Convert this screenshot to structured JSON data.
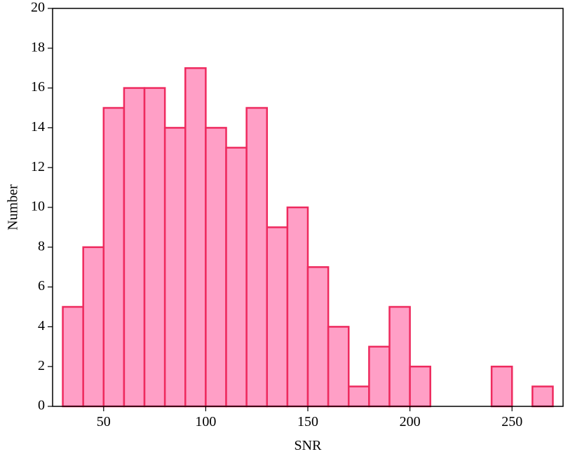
{
  "chart_data": {
    "type": "histogram",
    "xlabel": "SNR",
    "ylabel": "Number",
    "bins": [
      30,
      40,
      50,
      60,
      70,
      80,
      90,
      100,
      110,
      120,
      130,
      140,
      150,
      160,
      170,
      180,
      190,
      200,
      210,
      220,
      230,
      240,
      250,
      260,
      270
    ],
    "values": [
      5,
      8,
      15,
      16,
      16,
      14,
      17,
      14,
      13,
      15,
      9,
      10,
      7,
      4,
      1,
      3,
      5,
      2,
      0,
      0,
      0,
      2,
      0,
      1
    ],
    "color": "#ff9fc6",
    "edgecolor": "#ee2a5e",
    "xlim": [
      25,
      275
    ],
    "xticks": [
      50,
      100,
      150,
      200,
      250
    ],
    "ylim": [
      0,
      20
    ],
    "yticks": [
      0,
      2,
      4,
      6,
      8,
      10,
      12,
      14,
      16,
      18,
      20
    ]
  }
}
